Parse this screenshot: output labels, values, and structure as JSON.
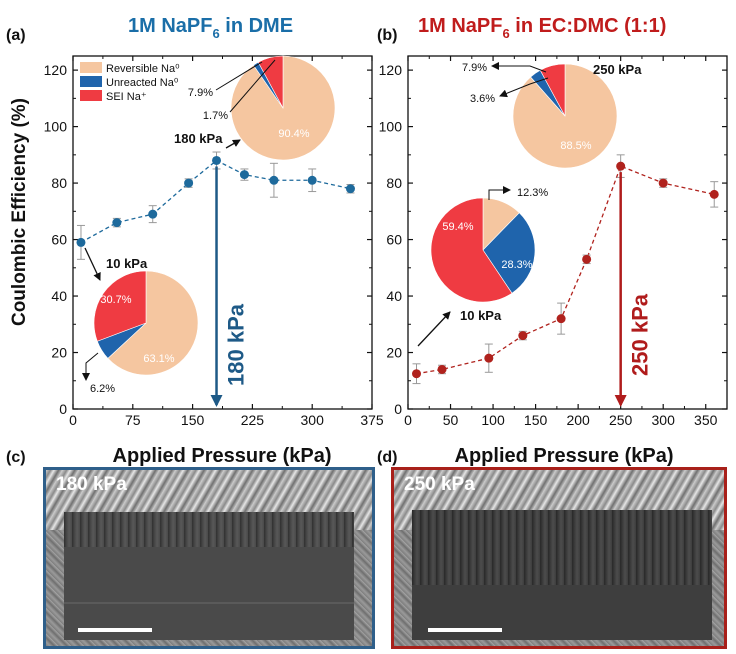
{
  "panels": {
    "a": {
      "letter": "(a)",
      "title_main": "1M NaPF",
      "title_sub": "6",
      "title_rest": " in DME",
      "title_color": "#1a6ea8"
    },
    "b": {
      "letter": "(b)",
      "title_main": "1M NaPF",
      "title_sub": "6",
      "title_rest": " in EC:DMC (1:1)",
      "title_color": "#c01c1c"
    },
    "c": {
      "letter": "(c)",
      "xlabel": "Applied Pressure (kPa)",
      "sem_label": "180 kPa"
    },
    "d": {
      "letter": "(d)",
      "xlabel": "Applied Pressure (kPa)",
      "sem_label": "250 kPa"
    }
  },
  "legend": {
    "items": [
      {
        "label": "Reversible Na⁰",
        "color": "#f5c6a0"
      },
      {
        "label": "Unreacted Na⁰",
        "color": "#1f64ac"
      },
      {
        "label": "SEI Na⁺",
        "color": "#ef3b42"
      }
    ]
  },
  "chart_data": [
    {
      "type": "scatter",
      "id": "a",
      "title": "1M NaPF6 in DME",
      "xlabel": "Applied Pressure (kPa)",
      "ylabel": "Coulombic Efficiency (%)",
      "xlim": [
        0,
        375
      ],
      "ylim": [
        0,
        125
      ],
      "xticks": [
        0,
        75,
        150,
        225,
        300,
        375
      ],
      "xminor": [
        37.5,
        112.5,
        187.5,
        262.5,
        337.5
      ],
      "yticks": [
        0,
        20,
        40,
        60,
        80,
        100,
        120
      ],
      "series": [
        {
          "name": "CE",
          "color": "#1e6a9c",
          "line": "dashed",
          "x": [
            10,
            55,
            100,
            145,
            180,
            215,
            252,
            300,
            348
          ],
          "y": [
            59,
            66,
            69,
            80,
            88,
            83,
            81,
            81,
            78
          ],
          "err": [
            6,
            1.5,
            3,
            1.5,
            3,
            2,
            6,
            4,
            1.5
          ]
        }
      ],
      "arrow": {
        "x": 180,
        "label": "180 kPa",
        "color": "#1e5a87"
      },
      "pies": [
        {
          "slices": [
            {
              "name": "Reversible Na⁰",
              "value": 90.4,
              "label": "90.4%"
            },
            {
              "name": "Unreacted Na⁰",
              "value": 1.7,
              "label": "1.7%"
            },
            {
              "name": "SEI Na⁺",
              "value": 7.9,
              "label": "7.9%"
            }
          ],
          "pressure_label": "180 kPa"
        },
        {
          "slices": [
            {
              "name": "Reversible Na⁰",
              "value": 63.1,
              "label": "63.1%"
            },
            {
              "name": "Unreacted Na⁰",
              "value": 6.2,
              "label": "6.2%"
            },
            {
              "name": "SEI Na⁺",
              "value": 30.7,
              "label": "30.7%"
            }
          ],
          "pressure_label": "10 kPa"
        }
      ]
    },
    {
      "type": "scatter",
      "id": "b",
      "title": "1M NaPF6 in EC:DMC (1:1)",
      "xlabel": "Applied Pressure (kPa)",
      "ylabel": "",
      "xlim": [
        0,
        375
      ],
      "ylim": [
        0,
        125
      ],
      "xticks": [
        0,
        50,
        100,
        150,
        200,
        250,
        300,
        350
      ],
      "xminor": [
        25,
        75,
        125,
        175,
        225,
        275,
        325
      ],
      "yticks": [
        0,
        20,
        40,
        60,
        80,
        100,
        120
      ],
      "series": [
        {
          "name": "CE",
          "color": "#b0221d",
          "line": "dashed",
          "x": [
            10,
            40,
            95,
            135,
            180,
            210,
            250,
            300,
            360
          ],
          "y": [
            12.5,
            14,
            18,
            26,
            32,
            53,
            86,
            80,
            76
          ],
          "err": [
            3.5,
            1.5,
            5,
            1.5,
            5.5,
            1.5,
            4,
            1.5,
            4.5
          ]
        }
      ],
      "arrow": {
        "x": 250,
        "label": "250 kPa",
        "color": "#b01c1c"
      },
      "pies": [
        {
          "slices": [
            {
              "name": "Reversible Na⁰",
              "value": 88.5,
              "label": "88.5%"
            },
            {
              "name": "Unreacted Na⁰",
              "value": 3.6,
              "label": "3.6%"
            },
            {
              "name": "SEI Na⁺",
              "value": 7.9,
              "label": "7.9%"
            }
          ],
          "pressure_label": "250 kPa"
        },
        {
          "slices": [
            {
              "name": "Reversible Na⁰",
              "value": 12.3,
              "label": "12.3%"
            },
            {
              "name": "Unreacted Na⁰",
              "value": 28.3,
              "label": "28.3%"
            },
            {
              "name": "SEI Na⁺",
              "value": 59.4,
              "label": "59.4%"
            }
          ],
          "pressure_label": "10 kPa"
        }
      ]
    }
  ]
}
